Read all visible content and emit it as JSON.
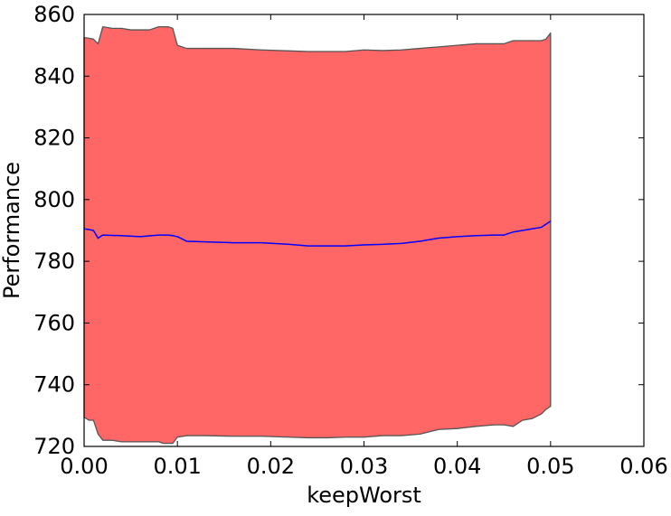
{
  "chart_data": {
    "type": "area",
    "title": "",
    "xlabel": "keepWorst",
    "ylabel": "Performance",
    "xlim": [
      0.0,
      0.06
    ],
    "ylim": [
      720,
      860
    ],
    "grid": false,
    "legend": "none",
    "x_ticks": [
      0.0,
      0.01,
      0.02,
      0.03,
      0.04,
      0.05,
      0.06
    ],
    "x_tick_labels": [
      "0.00",
      "0.01",
      "0.02",
      "0.03",
      "0.04",
      "0.05",
      "0.06"
    ],
    "y_ticks": [
      720,
      740,
      760,
      780,
      800,
      820,
      840,
      860
    ],
    "y_tick_labels": [
      "720",
      "740",
      "760",
      "780",
      "800",
      "820",
      "840",
      "860"
    ],
    "colors": {
      "band_fill": "#ff6666",
      "band_edge": "#555555",
      "mean_line": "#0000ff"
    },
    "series": [
      {
        "kind": "band",
        "x": [
          0.0,
          0.0005,
          0.001,
          0.0015,
          0.002,
          0.003,
          0.004,
          0.005,
          0.006,
          0.007,
          0.008,
          0.0085,
          0.009,
          0.0095,
          0.01,
          0.011,
          0.013,
          0.016,
          0.019,
          0.022,
          0.024,
          0.026,
          0.028,
          0.03,
          0.032,
          0.034,
          0.036,
          0.038,
          0.04,
          0.042,
          0.044,
          0.045,
          0.046,
          0.047,
          0.048,
          0.049,
          0.0495,
          0.05
        ],
        "upper": [
          852.5,
          852.3,
          852.0,
          850.5,
          856.0,
          855.5,
          855.5,
          855.0,
          855.0,
          855.0,
          856.0,
          856.0,
          856.0,
          855.5,
          850.0,
          849.0,
          849.0,
          849.0,
          848.5,
          848.2,
          848.0,
          848.0,
          848.0,
          848.5,
          848.3,
          848.5,
          849.0,
          849.5,
          850.0,
          850.5,
          850.5,
          850.5,
          851.5,
          851.5,
          851.5,
          851.5,
          852.0,
          854.0
        ],
        "lower": [
          729.5,
          728.5,
          728.5,
          724.0,
          722.0,
          722.0,
          721.5,
          721.5,
          721.5,
          721.5,
          721.5,
          721.0,
          721.0,
          721.0,
          723.0,
          723.5,
          723.5,
          723.3,
          723.3,
          723.0,
          722.8,
          722.8,
          723.0,
          723.0,
          723.5,
          723.5,
          724.0,
          725.5,
          725.8,
          726.5,
          727.0,
          727.0,
          726.5,
          728.5,
          729.0,
          730.5,
          732.0,
          733.0
        ]
      },
      {
        "kind": "line",
        "x": [
          0.0,
          0.0005,
          0.001,
          0.0015,
          0.002,
          0.004,
          0.006,
          0.008,
          0.009,
          0.0095,
          0.01,
          0.011,
          0.013,
          0.016,
          0.019,
          0.022,
          0.024,
          0.026,
          0.028,
          0.03,
          0.032,
          0.034,
          0.036,
          0.038,
          0.04,
          0.042,
          0.044,
          0.045,
          0.046,
          0.047,
          0.048,
          0.049,
          0.0495,
          0.05
        ],
        "y": [
          790.5,
          790.3,
          790.0,
          787.5,
          788.5,
          788.3,
          788.0,
          788.5,
          788.5,
          788.3,
          788.0,
          786.5,
          786.3,
          786.0,
          786.0,
          785.5,
          785.0,
          785.0,
          785.0,
          785.3,
          785.5,
          785.8,
          786.5,
          787.5,
          788.0,
          788.3,
          788.5,
          788.5,
          789.5,
          790.0,
          790.5,
          791.0,
          792.0,
          793.0
        ]
      }
    ]
  }
}
